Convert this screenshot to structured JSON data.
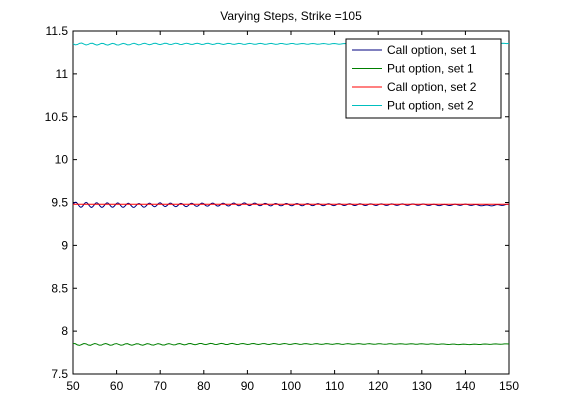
{
  "chart_data": {
    "type": "line",
    "title": "Varying Steps, Strike =105",
    "xlabel": "",
    "ylabel": "",
    "xlim": [
      50,
      150
    ],
    "ylim": [
      7.5,
      11.5
    ],
    "xticks": [
      "50",
      "60",
      "70",
      "80",
      "90",
      "100",
      "110",
      "120",
      "130",
      "140",
      "150"
    ],
    "yticks": [
      "7.5",
      "8",
      "8.5",
      "9",
      "9.5",
      "10",
      "10.5",
      "11",
      "11.5"
    ],
    "grid": false,
    "legend_position": "top-right",
    "series": [
      {
        "name": "Call option, set 1",
        "color": "#00007f",
        "base": 9.475,
        "amplitude": 0.03,
        "x": [
          50,
          55,
          60,
          65,
          70,
          75,
          80,
          85,
          90,
          95,
          100,
          105,
          110,
          115,
          120,
          125,
          130,
          135,
          140,
          145,
          150
        ],
        "values": [
          9.475,
          9.47,
          9.47,
          9.465,
          9.475,
          9.47,
          9.475,
          9.475,
          9.48,
          9.475,
          9.475,
          9.475,
          9.475,
          9.475,
          9.475,
          9.475,
          9.475,
          9.47,
          9.475,
          9.465,
          9.475
        ]
      },
      {
        "name": "Put option, set 1",
        "color": "#007f00",
        "base": 7.845,
        "amplitude": 0.012,
        "x": [
          50,
          60,
          70,
          80,
          90,
          100,
          110,
          120,
          130,
          140,
          150
        ],
        "values": [
          7.845,
          7.845,
          7.845,
          7.85,
          7.85,
          7.85,
          7.85,
          7.85,
          7.85,
          7.845,
          7.85
        ]
      },
      {
        "name": "Call option, set 2",
        "color": "#ff0000",
        "base": 9.48,
        "amplitude": 0.0,
        "x": [
          50,
          60,
          70,
          80,
          90,
          100,
          110,
          120,
          130,
          140,
          150
        ],
        "values": [
          9.48,
          9.48,
          9.48,
          9.48,
          9.48,
          9.48,
          9.48,
          9.48,
          9.48,
          9.48,
          9.48
        ]
      },
      {
        "name": "Put option, set 2",
        "color": "#00bfbf",
        "base": 11.35,
        "amplitude": 0.012,
        "x": [
          50,
          60,
          70,
          80,
          90,
          100,
          110,
          120,
          130,
          140,
          150
        ],
        "values": [
          11.35,
          11.345,
          11.35,
          11.35,
          11.35,
          11.35,
          11.35,
          11.35,
          11.35,
          11.35,
          11.355
        ]
      }
    ]
  }
}
